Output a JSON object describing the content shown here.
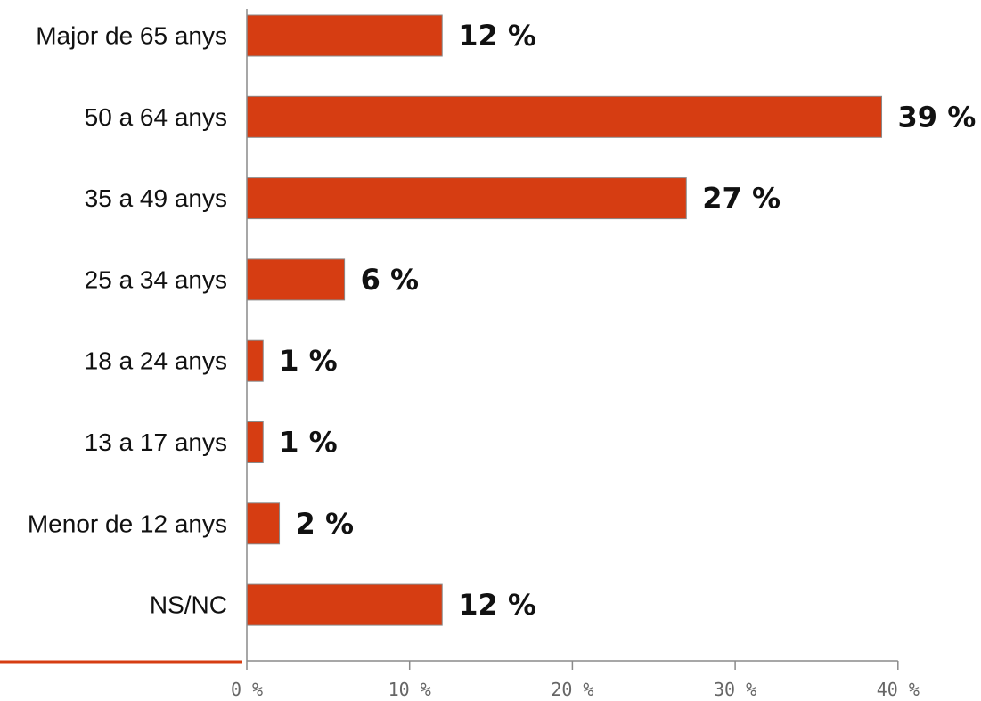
{
  "chart_data": {
    "type": "bar",
    "orientation": "horizontal",
    "categories": [
      "Major de 65 anys",
      "50 a 64 anys",
      "35 a 49 anys",
      "25 a 34 anys",
      "18 a 24 anys",
      "13 a 17 anys",
      "Menor de 12 anys",
      "NS/NC"
    ],
    "values": [
      12,
      39,
      27,
      6,
      1,
      1,
      2,
      12
    ],
    "value_labels": [
      "12 %",
      "39 %",
      "27 %",
      "6 %",
      "1 %",
      "1 %",
      "2 %",
      "12 %"
    ],
    "xlim": [
      0,
      40
    ],
    "x_ticks": [
      0,
      10,
      20,
      30,
      40
    ],
    "x_tick_labels": [
      "0 %",
      "10 %",
      "20 %",
      "30 %",
      "40 %"
    ],
    "title": "",
    "xlabel": "",
    "ylabel": "",
    "grid": false,
    "legend": "none",
    "bar_color": "#D63D12",
    "accent_line_color": "#D63D12",
    "axis_color": "#8A8A8A"
  }
}
